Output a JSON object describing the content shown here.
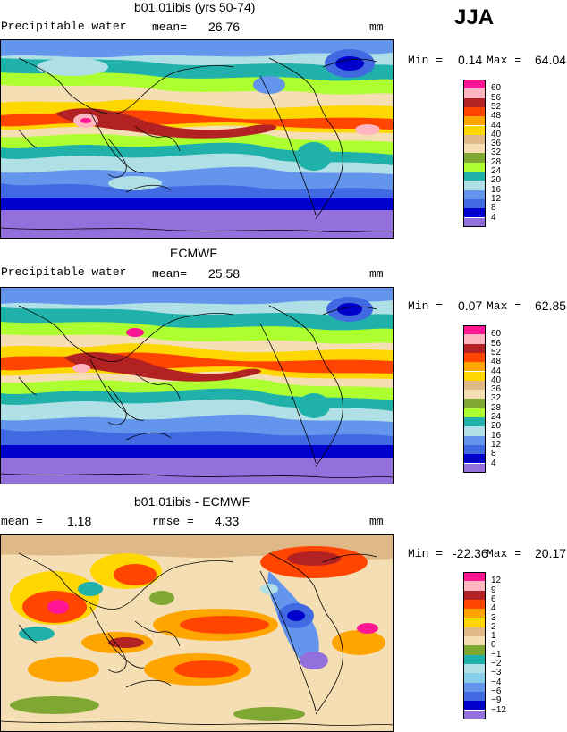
{
  "season": "JJA",
  "panels": [
    {
      "title": "b01.01ibis (yrs 50-74)",
      "left_label": "Precipitable water",
      "stat_label": "mean=",
      "stat_value": "26.76",
      "units": "mm",
      "min_label": "Min =",
      "min_value": "0.14",
      "max_label": "Max =",
      "max_value": "64.04",
      "legend_labels": [
        "60",
        "56",
        "52",
        "48",
        "44",
        "40",
        "36",
        "32",
        "28",
        "24",
        "20",
        "16",
        "12",
        "8",
        "4"
      ],
      "legend_colors": [
        "#ff1493",
        "#ffb6c1",
        "#b22222",
        "#ff4500",
        "#ffa500",
        "#ffd700",
        "#deb887",
        "#f5deb3",
        "#7fa832",
        "#adff2f",
        "#20b2aa",
        "#b0e0e6",
        "#6495ed",
        "#4169e1",
        "#0000cd",
        "#9370db"
      ]
    },
    {
      "title": "ECMWF",
      "left_label": "Precipitable water",
      "stat_label": "mean=",
      "stat_value": "25.58",
      "units": "mm",
      "min_label": "Min =",
      "min_value": "0.07",
      "max_label": "Max =",
      "max_value": "62.85",
      "legend_labels": [
        "60",
        "56",
        "52",
        "48",
        "44",
        "40",
        "36",
        "32",
        "28",
        "24",
        "20",
        "16",
        "12",
        "8",
        "4"
      ],
      "legend_colors": [
        "#ff1493",
        "#ffb6c1",
        "#b22222",
        "#ff4500",
        "#ffa500",
        "#ffd700",
        "#deb887",
        "#f5deb3",
        "#7fa832",
        "#adff2f",
        "#20b2aa",
        "#b0e0e6",
        "#6495ed",
        "#4169e1",
        "#0000cd",
        "#9370db"
      ]
    },
    {
      "title": "b01.01ibis - ECMWF",
      "left_label": "mean =",
      "left_value": "1.18",
      "stat_label": "rmse =",
      "stat_value": "4.33",
      "units": "mm",
      "min_label": "Min =",
      "min_value": "-22.36",
      "max_label": "Max =",
      "max_value": "20.17",
      "legend_labels": [
        "12",
        "9",
        "6",
        "4",
        "3",
        "2",
        "1",
        "0",
        "−1",
        "−2",
        "−3",
        "−4",
        "−6",
        "−9",
        "−12"
      ],
      "legend_colors": [
        "#ff1493",
        "#ffb6c1",
        "#b22222",
        "#ff4500",
        "#ffa500",
        "#ffd700",
        "#deb887",
        "#f5deb3",
        "#7fa832",
        "#20b2aa",
        "#b0e0e6",
        "#87ceeb",
        "#6495ed",
        "#4169e1",
        "#0000cd",
        "#9370db"
      ]
    }
  ]
}
